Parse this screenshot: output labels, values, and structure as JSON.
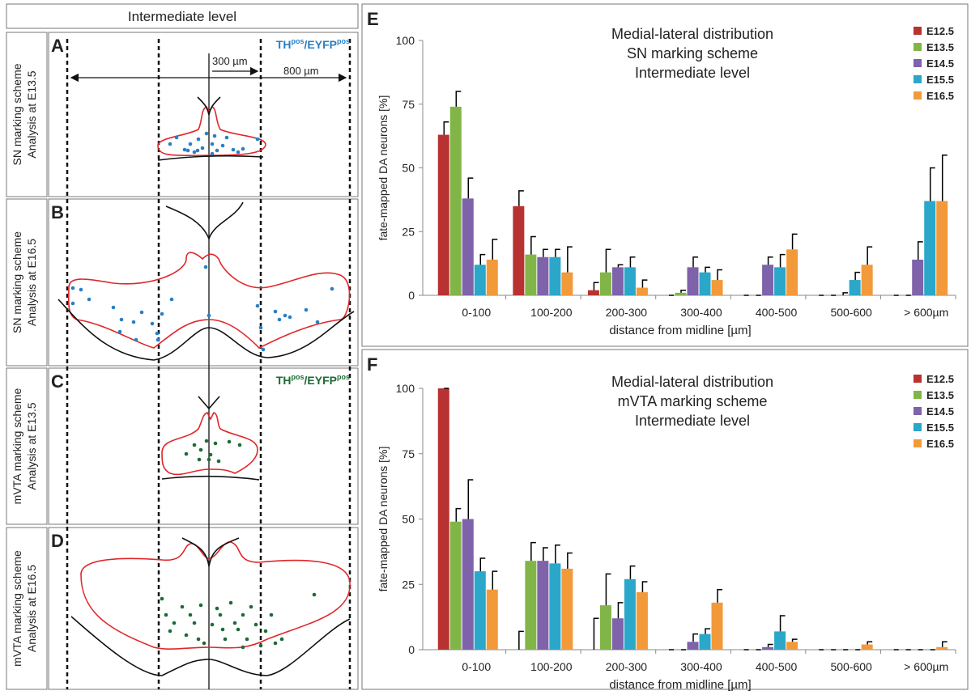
{
  "diagram": {
    "header": "Intermediate level",
    "scale_labels": [
      "300 µm",
      "800 µm"
    ],
    "panels": [
      {
        "letter": "A",
        "label": [
          "SN marking scheme",
          "Analysis at E13.5"
        ],
        "marker": [
          "TH",
          "pos",
          "/EYFP",
          "pos"
        ]
      },
      {
        "letter": "B",
        "label": [
          "SN marking scheme",
          "Analysis at E16.5"
        ]
      },
      {
        "letter": "C",
        "label": [
          "mVTA marking scheme",
          "Analysis at E13.5"
        ],
        "marker": [
          "TH",
          "pos",
          "/EYFP",
          "pos"
        ]
      },
      {
        "letter": "D",
        "label": [
          "mVTA marking scheme",
          "Analysis at E16.5"
        ]
      }
    ]
  },
  "chart_data": [
    {
      "type": "bar",
      "panel": "E",
      "title": [
        "Medial-lateral distribution",
        "SN marking scheme",
        "Intermediate level"
      ],
      "x_label": "distance from midline [µm]",
      "y_label": "fate-mapped DA neurons [%]",
      "categories": [
        "0-100",
        "100-200",
        "200-300",
        "300-400",
        "400-500",
        "500-600",
        "> 600µm"
      ],
      "ylim": [
        0,
        100
      ],
      "yticks": [
        0,
        25,
        50,
        75,
        100
      ],
      "legend": "upper right",
      "series": [
        {
          "name": "E12.5",
          "color": "#b83232",
          "values": [
            63,
            35,
            2,
            0,
            0,
            0,
            0
          ],
          "errors": [
            5,
            6,
            3,
            0,
            0,
            0,
            0
          ]
        },
        {
          "name": "E13.5",
          "color": "#82b548",
          "values": [
            74,
            16,
            9,
            1,
            0,
            0,
            0
          ],
          "errors": [
            6,
            7,
            9,
            1,
            0,
            0,
            0
          ]
        },
        {
          "name": "E14.5",
          "color": "#7e62aa",
          "values": [
            38,
            15,
            11,
            11,
            12,
            0,
            14
          ],
          "errors": [
            8,
            3,
            1,
            4,
            3,
            1,
            7
          ]
        },
        {
          "name": "E15.5",
          "color": "#2aa7c9",
          "values": [
            12,
            15,
            11,
            9,
            11,
            6,
            37
          ],
          "errors": [
            4,
            3,
            4,
            2,
            5,
            3,
            13
          ]
        },
        {
          "name": "E16.5",
          "color": "#f29a3a",
          "values": [
            14,
            9,
            3,
            6,
            18,
            12,
            37
          ],
          "errors": [
            8,
            10,
            3,
            4,
            6,
            7,
            18
          ]
        }
      ]
    },
    {
      "type": "bar",
      "panel": "F",
      "title": [
        "Medial-lateral distribution",
        "mVTA marking scheme",
        "Intermediate level"
      ],
      "x_label": "distance from midline [µm]",
      "y_label": "fate-mapped DA neurons [%]",
      "categories": [
        "0-100",
        "100-200",
        "200-300",
        "300-400",
        "400-500",
        "500-600",
        "> 600µm"
      ],
      "ylim": [
        0,
        100
      ],
      "yticks": [
        0,
        25,
        50,
        75,
        100
      ],
      "legend": "upper right",
      "series": [
        {
          "name": "E12.5",
          "color": "#b83232",
          "values": [
            100,
            0,
            0,
            0,
            0,
            0,
            0
          ],
          "errors": [
            0,
            7,
            12,
            0,
            0,
            0,
            0
          ]
        },
        {
          "name": "E13.5",
          "color": "#82b548",
          "values": [
            49,
            34,
            17,
            0,
            0,
            0,
            0
          ],
          "errors": [
            5,
            7,
            12,
            0,
            0,
            0,
            0
          ]
        },
        {
          "name": "E14.5",
          "color": "#7e62aa",
          "values": [
            50,
            34,
            12,
            3,
            1,
            0,
            0
          ],
          "errors": [
            15,
            5,
            6,
            3,
            1,
            0,
            0
          ]
        },
        {
          "name": "E15.5",
          "color": "#2aa7c9",
          "values": [
            30,
            33,
            27,
            6,
            7,
            0,
            0
          ],
          "errors": [
            5,
            7,
            5,
            2,
            6,
            0,
            0
          ]
        },
        {
          "name": "E16.5",
          "color": "#f29a3a",
          "values": [
            23,
            31,
            22,
            18,
            3,
            2,
            1
          ],
          "errors": [
            7,
            6,
            4,
            5,
            1,
            1,
            2
          ]
        }
      ]
    }
  ]
}
